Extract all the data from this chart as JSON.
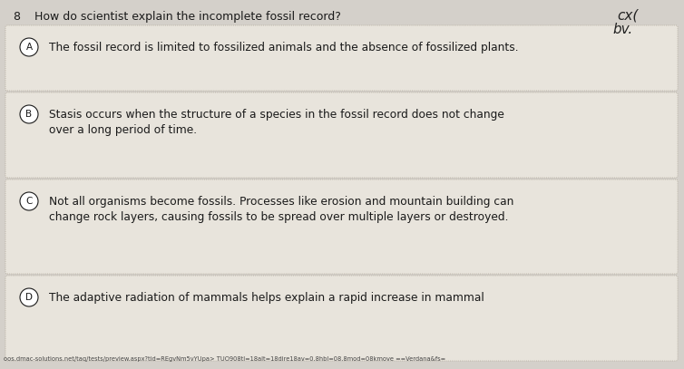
{
  "question_number": "8",
  "question_text": "How do scientist explain the incomplete fossil record?",
  "options": [
    {
      "letter": "A",
      "lines": [
        "The fossil record is limited to fossilized animals and the absence of fossilized plants."
      ]
    },
    {
      "letter": "B",
      "lines": [
        "Stasis occurs when the structure of a species in the fossil record does not change",
        "over a long period of time."
      ]
    },
    {
      "letter": "C",
      "lines": [
        "Not all organisms become fossils. Processes like erosion and mountain building can",
        "change rock layers, causing fossils to be spread over multiple layers or destroyed."
      ]
    },
    {
      "letter": "D",
      "lines": [
        "The adaptive radiation of mammals helps explain a rapid increase in mammal"
      ]
    }
  ],
  "background_color": "#d4d0ca",
  "box_facecolor": "#e8e4dc",
  "box_edgecolor": "#b0a898",
  "text_color": "#1a1a1a",
  "question_color": "#1a1a1a",
  "url_text": "oos.dmac-solutions.net/taq/tests/preview.aspx?tid=REgvNm5vYUpa> TUO908tl=18alt=18dire18av=0.8hbl=08.8mod=08kmove ==Verdana&fs=",
  "top_right_text1": "cx(",
  "top_right_text2": "bv.",
  "figsize": [
    7.54,
    4.07
  ],
  "dpi": 100
}
